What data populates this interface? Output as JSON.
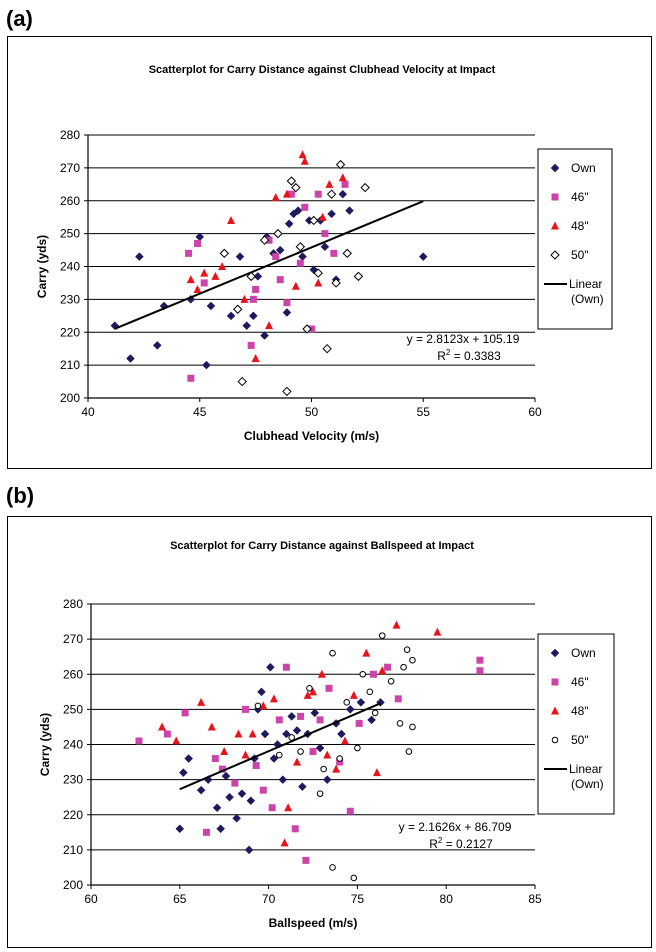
{
  "panels": [
    {
      "label": "(a)"
    },
    {
      "label": "(b)"
    }
  ],
  "chart_data": [
    {
      "type": "scatter",
      "title": "Scatterplot for Carry Distance against Clubhead Velocity at Impact",
      "xlabel": "Clubhead Velocity (m/s)",
      "ylabel": "Carry (yds)",
      "xlim": [
        40,
        60
      ],
      "ylim": [
        200,
        280
      ],
      "xticks": [
        40,
        45,
        50,
        55,
        60
      ],
      "yticks": [
        200,
        210,
        220,
        230,
        240,
        250,
        260,
        270,
        280
      ],
      "grid": "horizontal",
      "legend_position": "right",
      "colors": {
        "Own": "#1f1a5e",
        "46\"": "#cc44aa",
        "48\"": "#e8141b",
        "50\"": "#000000",
        "line": "#000000"
      },
      "legend": [
        "Own",
        "46\"",
        "48\"",
        "50\"",
        "Linear (Own)"
      ],
      "trendline": {
        "slope": 2.8123,
        "intercept": 105.19,
        "x_range": [
          41.2,
          55
        ]
      },
      "annotations": [
        "y = 2.8123x + 105.19",
        "R2 = 0.3383"
      ],
      "series": [
        {
          "name": "Own",
          "marker": "diamond",
          "points": [
            [
              41.2,
              222
            ],
            [
              41.9,
              212
            ],
            [
              42.3,
              243
            ],
            [
              43.1,
              216
            ],
            [
              43.4,
              228
            ],
            [
              44.6,
              230
            ],
            [
              45.0,
              249
            ],
            [
              45.3,
              210
            ],
            [
              45.5,
              228
            ],
            [
              46.4,
              225
            ],
            [
              46.8,
              243
            ],
            [
              47.1,
              222
            ],
            [
              47.4,
              225
            ],
            [
              47.6,
              237
            ],
            [
              47.9,
              219
            ],
            [
              48.0,
              249
            ],
            [
              48.3,
              244
            ],
            [
              48.6,
              245
            ],
            [
              48.9,
              226
            ],
            [
              49.0,
              253
            ],
            [
              49.2,
              256
            ],
            [
              49.4,
              257
            ],
            [
              49.6,
              243
            ],
            [
              49.9,
              254
            ],
            [
              50.1,
              239
            ],
            [
              50.4,
              254
            ],
            [
              50.6,
              246
            ],
            [
              50.9,
              256
            ],
            [
              51.1,
              236
            ],
            [
              51.4,
              262
            ],
            [
              51.7,
              257
            ],
            [
              55.0,
              243
            ]
          ]
        },
        {
          "name": "46\"",
          "marker": "square",
          "points": [
            [
              44.6,
              206
            ],
            [
              44.5,
              244
            ],
            [
              44.9,
              247
            ],
            [
              45.2,
              235
            ],
            [
              47.3,
              216
            ],
            [
              47.4,
              230
            ],
            [
              47.5,
              233
            ],
            [
              48.1,
              248
            ],
            [
              48.4,
              243
            ],
            [
              48.6,
              236
            ],
            [
              48.9,
              229
            ],
            [
              49.1,
              262
            ],
            [
              49.5,
              241
            ],
            [
              49.7,
              258
            ],
            [
              50.0,
              221
            ],
            [
              50.3,
              262
            ],
            [
              50.6,
              250
            ],
            [
              51.0,
              244
            ],
            [
              51.5,
              265
            ]
          ]
        },
        {
          "name": "48\"",
          "marker": "triangle",
          "points": [
            [
              44.6,
              236
            ],
            [
              44.9,
              233
            ],
            [
              45.2,
              238
            ],
            [
              45.7,
              237
            ],
            [
              46.0,
              240
            ],
            [
              46.4,
              254
            ],
            [
              47.0,
              230
            ],
            [
              47.5,
              212
            ],
            [
              48.1,
              222
            ],
            [
              48.4,
              261
            ],
            [
              48.9,
              262
            ],
            [
              49.3,
              234
            ],
            [
              49.6,
              274
            ],
            [
              49.7,
              272
            ],
            [
              50.3,
              235
            ],
            [
              50.5,
              255
            ],
            [
              50.8,
              265
            ],
            [
              51.4,
              267
            ]
          ]
        },
        {
          "name": "50\"",
          "marker": "open-diamond",
          "points": [
            [
              46.1,
              244
            ],
            [
              46.7,
              227
            ],
            [
              46.9,
              205
            ],
            [
              47.3,
              237
            ],
            [
              47.9,
              248
            ],
            [
              48.5,
              250
            ],
            [
              48.9,
              202
            ],
            [
              49.1,
              266
            ],
            [
              49.3,
              264
            ],
            [
              49.5,
              246
            ],
            [
              49.8,
              221
            ],
            [
              50.1,
              254
            ],
            [
              50.3,
              238
            ],
            [
              50.7,
              215
            ],
            [
              50.9,
              262
            ],
            [
              51.1,
              235
            ],
            [
              51.3,
              271
            ],
            [
              51.6,
              244
            ],
            [
              52.1,
              237
            ],
            [
              52.4,
              264
            ]
          ]
        }
      ]
    },
    {
      "type": "scatter",
      "title": "Scatterplot for Carry Distance against Ballspeed at Impact",
      "xlabel": "Ballspeed (m/s)",
      "ylabel": "Carry (yds)",
      "xlim": [
        60,
        85
      ],
      "ylim": [
        200,
        280
      ],
      "xticks": [
        60,
        65,
        70,
        75,
        80,
        85
      ],
      "yticks": [
        200,
        210,
        220,
        230,
        240,
        250,
        260,
        270,
        280
      ],
      "grid": "horizontal",
      "legend_position": "right",
      "colors": {
        "Own": "#1f1a5e",
        "46\"": "#cc44aa",
        "48\"": "#e8141b",
        "50\"": "#000000",
        "line": "#000000"
      },
      "legend": [
        "Own",
        "46\"",
        "48\"",
        "50\"",
        "Linear (Own)"
      ],
      "trendline": {
        "slope": 2.1626,
        "intercept": 86.709,
        "x_range": [
          65,
          76.3
        ]
      },
      "annotations": [
        "y = 2.1626x + 86.709",
        "R2 = 0.2127"
      ],
      "series": [
        {
          "name": "Own",
          "marker": "diamond",
          "points": [
            [
              65.0,
              216
            ],
            [
              65.2,
              232
            ],
            [
              65.5,
              236
            ],
            [
              66.2,
              227
            ],
            [
              66.6,
              230
            ],
            [
              67.1,
              222
            ],
            [
              67.3,
              216
            ],
            [
              67.6,
              231
            ],
            [
              67.8,
              225
            ],
            [
              68.2,
              219
            ],
            [
              68.5,
              226
            ],
            [
              68.9,
              210
            ],
            [
              69.0,
              224
            ],
            [
              69.2,
              236
            ],
            [
              69.4,
              250
            ],
            [
              69.6,
              255
            ],
            [
              69.8,
              243
            ],
            [
              70.1,
              262
            ],
            [
              70.3,
              236
            ],
            [
              70.5,
              240
            ],
            [
              70.8,
              230
            ],
            [
              71.0,
              243
            ],
            [
              71.3,
              248
            ],
            [
              71.6,
              244
            ],
            [
              71.9,
              228
            ],
            [
              72.2,
              243
            ],
            [
              72.6,
              249
            ],
            [
              72.9,
              239
            ],
            [
              73.3,
              230
            ],
            [
              73.8,
              246
            ],
            [
              74.1,
              243
            ],
            [
              74.6,
              250
            ],
            [
              75.2,
              252
            ],
            [
              75.8,
              247
            ],
            [
              76.3,
              252
            ]
          ]
        },
        {
          "name": "46\"",
          "marker": "square",
          "points": [
            [
              62.7,
              241
            ],
            [
              64.3,
              243
            ],
            [
              65.3,
              249
            ],
            [
              66.5,
              215
            ],
            [
              67.0,
              236
            ],
            [
              67.4,
              233
            ],
            [
              68.1,
              229
            ],
            [
              68.7,
              250
            ],
            [
              69.3,
              234
            ],
            [
              69.7,
              227
            ],
            [
              70.2,
              222
            ],
            [
              70.6,
              247
            ],
            [
              71.0,
              262
            ],
            [
              71.5,
              216
            ],
            [
              71.8,
              248
            ],
            [
              72.1,
              207
            ],
            [
              72.5,
              238
            ],
            [
              72.9,
              247
            ],
            [
              73.4,
              256
            ],
            [
              74.0,
              235
            ],
            [
              74.6,
              221
            ],
            [
              75.1,
              246
            ],
            [
              75.9,
              260
            ],
            [
              76.7,
              262
            ],
            [
              77.3,
              253
            ],
            [
              81.9,
              264
            ],
            [
              81.9,
              261
            ]
          ]
        },
        {
          "name": "48\"",
          "marker": "triangle",
          "points": [
            [
              64.0,
              245
            ],
            [
              64.8,
              241
            ],
            [
              66.2,
              252
            ],
            [
              66.8,
              245
            ],
            [
              67.5,
              238
            ],
            [
              68.3,
              243
            ],
            [
              68.7,
              237
            ],
            [
              69.1,
              243
            ],
            [
              69.7,
              251
            ],
            [
              70.3,
              253
            ],
            [
              70.9,
              212
            ],
            [
              71.1,
              222
            ],
            [
              71.6,
              235
            ],
            [
              72.2,
              254
            ],
            [
              72.5,
              255
            ],
            [
              73.0,
              260
            ],
            [
              73.3,
              237
            ],
            [
              73.8,
              233
            ],
            [
              74.3,
              241
            ],
            [
              74.8,
              254
            ],
            [
              75.5,
              266
            ],
            [
              76.1,
              232
            ],
            [
              76.4,
              261
            ],
            [
              77.2,
              274
            ],
            [
              79.5,
              272
            ]
          ]
        },
        {
          "name": "50\"",
          "marker": "open-circle",
          "points": [
            [
              69.4,
              251
            ],
            [
              70.6,
              237
            ],
            [
              71.3,
              242
            ],
            [
              71.8,
              238
            ],
            [
              72.3,
              256
            ],
            [
              72.9,
              226
            ],
            [
              73.1,
              233
            ],
            [
              73.6,
              266
            ],
            [
              73.6,
              205
            ],
            [
              74.0,
              236
            ],
            [
              74.4,
              252
            ],
            [
              74.8,
              202
            ],
            [
              75.0,
              239
            ],
            [
              75.3,
              260
            ],
            [
              75.7,
              255
            ],
            [
              76.0,
              249
            ],
            [
              76.4,
              271
            ],
            [
              76.9,
              258
            ],
            [
              77.4,
              246
            ],
            [
              77.8,
              267
            ],
            [
              78.1,
              264
            ],
            [
              78.1,
              245
            ],
            [
              77.9,
              238
            ],
            [
              77.6,
              262
            ]
          ]
        }
      ]
    }
  ]
}
